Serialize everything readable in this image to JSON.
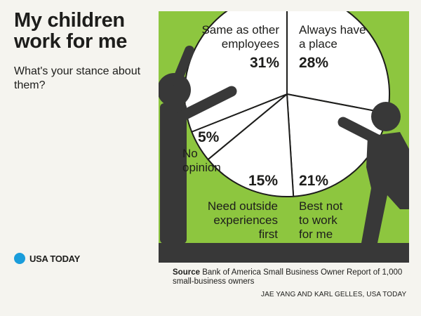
{
  "title": "My children work for me",
  "subtitle": "What's your stance about them?",
  "brand": {
    "name": "USA TODAY",
    "color": "#1a9ddb"
  },
  "source": {
    "label": "Source",
    "text": "Bank of America Small Business Owner Report of 1,000 small-business owners"
  },
  "credit": "JAE YANG AND KARL GELLES, USA TODAY",
  "colors": {
    "background": "#f5f4ef",
    "panel": "#8dc63f",
    "pie_fill": "#ffffff",
    "figure": "#383838",
    "ink": "#1d1d1b"
  },
  "chart_data": {
    "type": "pie",
    "title": "My children work for me",
    "slices": [
      {
        "label": "Always have a place",
        "value": 28
      },
      {
        "label": "Best not to work for me",
        "value": 21
      },
      {
        "label": "Need outside experiences first",
        "value": 15
      },
      {
        "label": "No opinion",
        "value": 5
      },
      {
        "label": "Same as other employees",
        "value": 31
      }
    ],
    "units": "%",
    "value_labels": [
      "28%",
      "21%",
      "15%",
      "5%",
      "31%"
    ],
    "label_lines": [
      [
        "Always have",
        "a place"
      ],
      [
        "Best not",
        "to work",
        "for me"
      ],
      [
        "Need outside",
        "experiences",
        "first"
      ],
      [
        "No",
        "opinion"
      ],
      [
        "Same as other",
        "employees"
      ]
    ]
  }
}
